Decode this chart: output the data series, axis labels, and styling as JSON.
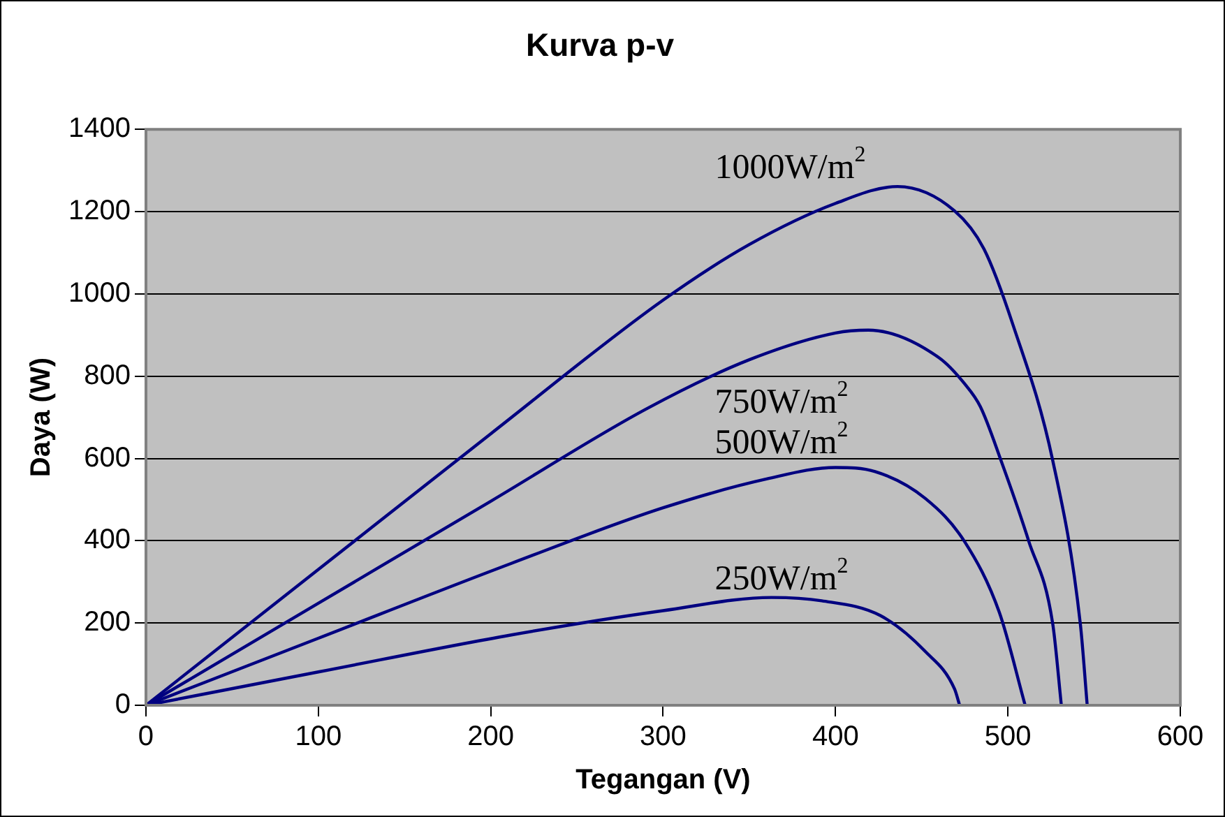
{
  "chart_data": {
    "type": "line",
    "title": "Kurva p-v",
    "xlabel": "Tegangan (V)",
    "ylabel": "Daya (W)",
    "xlim": [
      0,
      600
    ],
    "xticks": [
      0,
      100,
      200,
      300,
      400,
      500,
      600
    ],
    "ylim": [
      0,
      1400
    ],
    "yticks": [
      0,
      200,
      400,
      600,
      800,
      1000,
      1200,
      1400
    ],
    "grid": "y",
    "legend": false,
    "marker": "none",
    "line_style": "solid",
    "series": [
      {
        "name": "1000W/m$^{2}$",
        "color": "#000080",
        "x": [
          0,
          100,
          200,
          300,
          350,
          400,
          436,
          469,
          486,
          503,
          526,
          542,
          546
        ],
        "values": [
          0,
          330,
          660,
          985,
          1120,
          1220,
          1261,
          1202,
          1110,
          924,
          595,
          198,
          0
        ]
      },
      {
        "name": "750W/m$^{2}$",
        "color": "#000080",
        "x": [
          0,
          100,
          200,
          291,
          350,
          400,
          419,
          460,
          475,
          484,
          496,
          512,
          526,
          531
        ],
        "values": [
          0,
          248,
          496,
          722,
          840,
          905,
          912,
          845,
          781,
          726,
          595,
          400,
          198,
          0
        ]
      },
      {
        "name": "500W/m$^{2}$",
        "color": "#000080",
        "x": [
          0,
          100,
          212,
          300,
          360,
          400,
          423,
          452,
          475,
          495,
          510
        ],
        "values": [
          0,
          163,
          345,
          480,
          550,
          578,
          568,
          503,
          397,
          226,
          0
        ]
      },
      {
        "name": "250W/m$^{2}$",
        "color": "#000080",
        "x": [
          0,
          100,
          212,
          300,
          363,
          392,
          426,
          452,
          469,
          472
        ],
        "values": [
          0,
          81,
          171,
          230,
          262,
          254,
          218,
          131,
          40,
          0
        ]
      }
    ]
  }
}
